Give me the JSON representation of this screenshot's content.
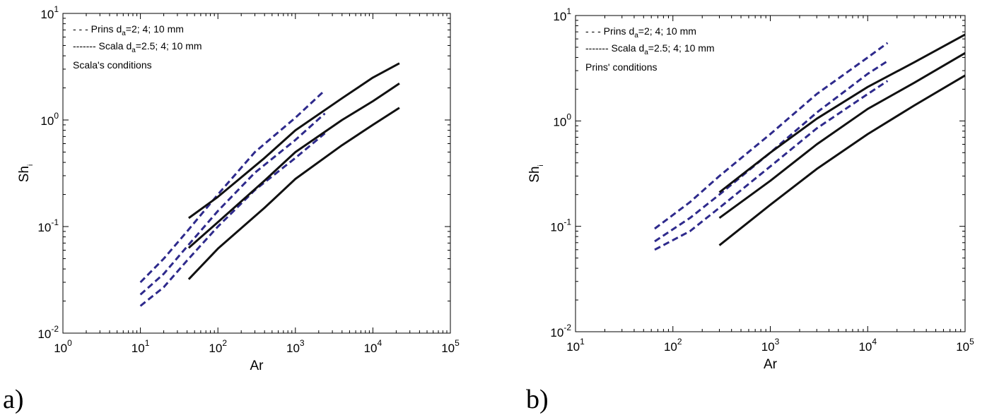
{
  "chart_data": [
    {
      "panel": "a)",
      "type": "line",
      "xlabel": "Ar",
      "ylabel": "Sh",
      "ylabel_sub": "i",
      "xscale": "log",
      "yscale": "log",
      "xlim": [
        1,
        100000
      ],
      "ylim": [
        0.01,
        10
      ],
      "x_ticks": [
        {
          "value": 1,
          "base": "10",
          "exp": "0"
        },
        {
          "value": 10,
          "base": "10",
          "exp": "1"
        },
        {
          "value": 100,
          "base": "10",
          "exp": "2"
        },
        {
          "value": 1000,
          "base": "10",
          "exp": "3"
        },
        {
          "value": 10000,
          "base": "10",
          "exp": "4"
        },
        {
          "value": 100000,
          "base": "10",
          "exp": "5"
        }
      ],
      "y_ticks": [
        {
          "value": 0.01,
          "base": "10",
          "exp": "-2"
        },
        {
          "value": 0.1,
          "base": "10",
          "exp": "-1"
        },
        {
          "value": 1,
          "base": "10",
          "exp": "0"
        },
        {
          "value": 10,
          "base": "10",
          "exp": "1"
        }
      ],
      "legend": [
        {
          "style": "- - -",
          "prefix": "Prins d",
          "sub": "a",
          "suffix": "=2; 4; 10 mm"
        },
        {
          "style": "-------",
          "prefix": "Scala d",
          "sub": "a",
          "suffix": "=2.5; 4; 10 mm"
        }
      ],
      "legend_position": "top-left",
      "annotation": "Scala's conditions",
      "series": [
        {
          "group": "Prins",
          "style": "dashed",
          "color": "#2e2a8c",
          "x": [
            10,
            20,
            40,
            100,
            300,
            1000,
            2400
          ],
          "y": [
            0.03,
            0.05,
            0.09,
            0.2,
            0.5,
            1.05,
            1.9
          ]
        },
        {
          "group": "Prins",
          "style": "dashed",
          "color": "#2e2a8c",
          "x": [
            10,
            20,
            40,
            100,
            300,
            1000,
            2400
          ],
          "y": [
            0.023,
            0.036,
            0.065,
            0.14,
            0.32,
            0.65,
            1.15
          ]
        },
        {
          "group": "Prins",
          "style": "dashed",
          "color": "#2e2a8c",
          "x": [
            10,
            20,
            40,
            100,
            300,
            1000,
            2400
          ],
          "y": [
            0.018,
            0.027,
            0.048,
            0.1,
            0.22,
            0.44,
            0.75
          ]
        },
        {
          "group": "Scala",
          "style": "solid",
          "color": "#111111",
          "x": [
            42,
            100,
            400,
            1000,
            4000,
            10000,
            22000
          ],
          "y": [
            0.12,
            0.19,
            0.44,
            0.8,
            1.6,
            2.5,
            3.4
          ]
        },
        {
          "group": "Scala",
          "style": "solid",
          "color": "#111111",
          "x": [
            42,
            100,
            400,
            1000,
            4000,
            10000,
            22000
          ],
          "y": [
            0.063,
            0.11,
            0.27,
            0.5,
            1.0,
            1.5,
            2.2
          ]
        },
        {
          "group": "Scala",
          "style": "solid",
          "color": "#111111",
          "x": [
            42,
            100,
            400,
            1000,
            4000,
            10000,
            22000
          ],
          "y": [
            0.032,
            0.062,
            0.15,
            0.28,
            0.58,
            0.9,
            1.3
          ]
        }
      ]
    },
    {
      "panel": "b)",
      "type": "line",
      "xlabel": "Ar",
      "ylabel": "Sh",
      "ylabel_sub": "i",
      "xscale": "log",
      "yscale": "log",
      "xlim": [
        10,
        100000
      ],
      "ylim": [
        0.01,
        10
      ],
      "x_ticks": [
        {
          "value": 10,
          "base": "10",
          "exp": "1"
        },
        {
          "value": 100,
          "base": "10",
          "exp": "2"
        },
        {
          "value": 1000,
          "base": "10",
          "exp": "3"
        },
        {
          "value": 10000,
          "base": "10",
          "exp": "4"
        },
        {
          "value": 100000,
          "base": "10",
          "exp": "5"
        }
      ],
      "y_ticks": [
        {
          "value": 0.01,
          "base": "10",
          "exp": "-2"
        },
        {
          "value": 0.1,
          "base": "10",
          "exp": "-1"
        },
        {
          "value": 1,
          "base": "10",
          "exp": "0"
        },
        {
          "value": 10,
          "base": "10",
          "exp": "1"
        }
      ],
      "legend": [
        {
          "style": "- - -",
          "prefix": "Prins d",
          "sub": "a",
          "suffix": "=2; 4; 10 mm"
        },
        {
          "style": "-------",
          "prefix": "Scala d",
          "sub": "a",
          "suffix": "=2.5; 4; 10 mm"
        }
      ],
      "legend_position": "top-left",
      "annotation": "Prins' conditions",
      "series": [
        {
          "group": "Prins",
          "style": "dashed",
          "color": "#2e2a8c",
          "x": [
            65,
            150,
            300,
            1000,
            3000,
            10000,
            16000
          ],
          "y": [
            0.095,
            0.17,
            0.3,
            0.75,
            1.8,
            4.0,
            5.5
          ]
        },
        {
          "group": "Prins",
          "style": "dashed",
          "color": "#2e2a8c",
          "x": [
            65,
            150,
            300,
            1000,
            3000,
            10000,
            16000
          ],
          "y": [
            0.072,
            0.12,
            0.2,
            0.5,
            1.2,
            2.8,
            3.7
          ]
        },
        {
          "group": "Prins",
          "style": "dashed",
          "color": "#2e2a8c",
          "x": [
            65,
            150,
            300,
            1000,
            3000,
            10000,
            16000
          ],
          "y": [
            0.06,
            0.09,
            0.15,
            0.37,
            0.85,
            1.8,
            2.4
          ]
        },
        {
          "group": "Scala",
          "style": "solid",
          "color": "#111111",
          "x": [
            300,
            1000,
            3000,
            10000,
            30000,
            100000
          ],
          "y": [
            0.21,
            0.5,
            1.05,
            2.1,
            3.6,
            6.6
          ]
        },
        {
          "group": "Scala",
          "style": "solid",
          "color": "#111111",
          "x": [
            300,
            1000,
            3000,
            10000,
            30000,
            100000
          ],
          "y": [
            0.12,
            0.27,
            0.6,
            1.3,
            2.3,
            4.4
          ]
        },
        {
          "group": "Scala",
          "style": "solid",
          "color": "#111111",
          "x": [
            300,
            1000,
            3000,
            10000,
            30000,
            100000
          ],
          "y": [
            0.066,
            0.16,
            0.35,
            0.75,
            1.4,
            2.7
          ]
        }
      ]
    }
  ]
}
